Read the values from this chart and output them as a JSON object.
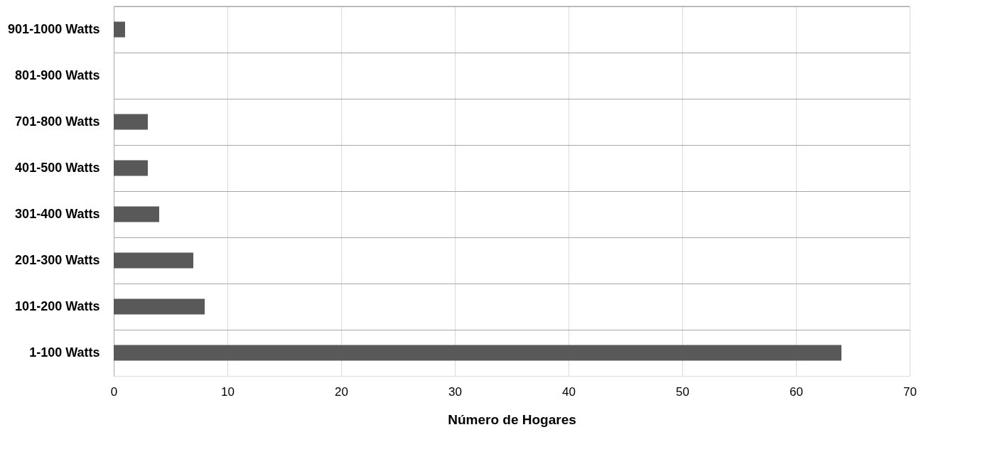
{
  "chart_data": {
    "type": "bar",
    "orientation": "horizontal",
    "xlabel": "Número de Hogares",
    "categories": [
      "901-1000 Watts",
      "801-900 Watts",
      "701-800 Watts",
      "401-500 Watts",
      "301-400 Watts",
      "201-300 Watts",
      "101-200 Watts",
      "1-100 Watts"
    ],
    "values": [
      1,
      0,
      3,
      3,
      4,
      7,
      8,
      64
    ],
    "color": "#595959",
    "xlim": [
      0,
      70
    ],
    "xticks": [
      0,
      10,
      20,
      30,
      40,
      50,
      60,
      70
    ],
    "grid": true
  }
}
